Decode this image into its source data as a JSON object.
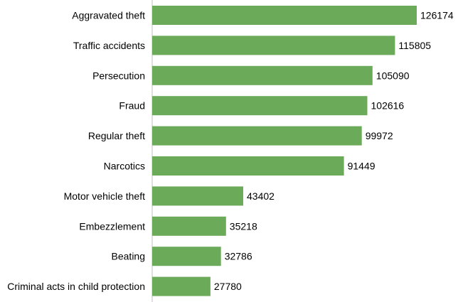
{
  "chart_data": {
    "type": "bar",
    "orientation": "horizontal",
    "title": "",
    "xlabel": "",
    "ylabel": "",
    "categories": [
      "Aggravated theft",
      "Traffic accidents",
      "Persecution",
      "Fraud",
      "Regular theft",
      "Narcotics",
      "Motor vehicle theft",
      "Embezzlement",
      "Beating",
      "Criminal acts in child protection"
    ],
    "values": [
      126174,
      115805,
      105090,
      102616,
      99972,
      91449,
      43402,
      35218,
      32786,
      27780
    ],
    "value_labels": [
      "126174",
      "115805",
      "105090",
      "102616",
      "99972",
      "91449",
      "43402",
      "35218",
      "32786",
      "27780"
    ],
    "xlim": [
      0,
      130000
    ],
    "bar_color": "#6aaa58",
    "grid": false,
    "legend": "none",
    "data_labels": true
  }
}
